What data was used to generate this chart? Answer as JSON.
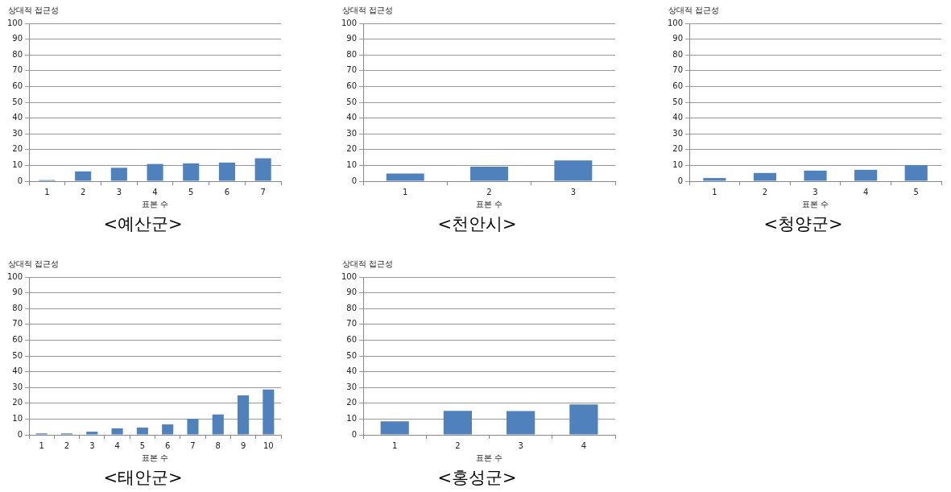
{
  "chart_data": [
    {
      "type": "bar",
      "title": "<예산군>",
      "xlabel": "표본 수",
      "ylabel": "상대적 접근성",
      "categories": [
        "1",
        "2",
        "3",
        "4",
        "5",
        "6",
        "7"
      ],
      "values": [
        0.7,
        6.2,
        8.5,
        10.9,
        11.3,
        11.8,
        14.5
      ],
      "color": "#4f81bd",
      "ylim": [
        0,
        100
      ],
      "yticks": [
        0,
        10,
        20,
        30,
        40,
        50,
        60,
        70,
        80,
        90,
        100
      ],
      "grid": "y",
      "legend": false
    },
    {
      "type": "bar",
      "title": "<천안시>",
      "xlabel": "표본 수",
      "ylabel": "상대적 접근성",
      "categories": [
        "1",
        "2",
        "3"
      ],
      "values": [
        4.8,
        9.2,
        13.2
      ],
      "color": "#4f81bd",
      "ylim": [
        0,
        100
      ],
      "yticks": [
        0,
        10,
        20,
        30,
        40,
        50,
        60,
        70,
        80,
        90,
        100
      ],
      "grid": "y",
      "legend": false
    },
    {
      "type": "bar",
      "title": "<청양군>",
      "xlabel": "표본 수",
      "ylabel": "상대적 접근성",
      "categories": [
        "1",
        "2",
        "3",
        "4",
        "5"
      ],
      "values": [
        2,
        5.2,
        6.7,
        7.2,
        10.2
      ],
      "color": "#4f81bd",
      "ylim": [
        0,
        100
      ],
      "yticks": [
        0,
        10,
        20,
        30,
        40,
        50,
        60,
        70,
        80,
        90,
        100
      ],
      "grid": "y",
      "legend": false
    },
    {
      "type": "bar",
      "title": "<태안군>",
      "xlabel": "표본 수",
      "ylabel": "상대적 접근성",
      "categories": [
        "1",
        "2",
        "3",
        "4",
        "5",
        "6",
        "7",
        "8",
        "9",
        "10"
      ],
      "values": [
        0.9,
        0.9,
        2,
        4.1,
        4.6,
        6.6,
        10.2,
        12.9,
        25,
        28.7
      ],
      "color": "#4f81bd",
      "ylim": [
        0,
        100
      ],
      "yticks": [
        0,
        10,
        20,
        30,
        40,
        50,
        60,
        70,
        80,
        90,
        100
      ],
      "grid": "y",
      "legend": false
    },
    {
      "type": "bar",
      "title": "<홍성군>",
      "xlabel": "표본 수",
      "ylabel": "상대적 접근성",
      "categories": [
        "1",
        "2",
        "3",
        "4"
      ],
      "values": [
        8.6,
        15.2,
        15.1,
        19.3
      ],
      "color": "#4f81bd",
      "ylim": [
        0,
        100
      ],
      "yticks": [
        0,
        10,
        20,
        30,
        40,
        50,
        60,
        70,
        80,
        90,
        100
      ],
      "grid": "y",
      "legend": false
    }
  ]
}
